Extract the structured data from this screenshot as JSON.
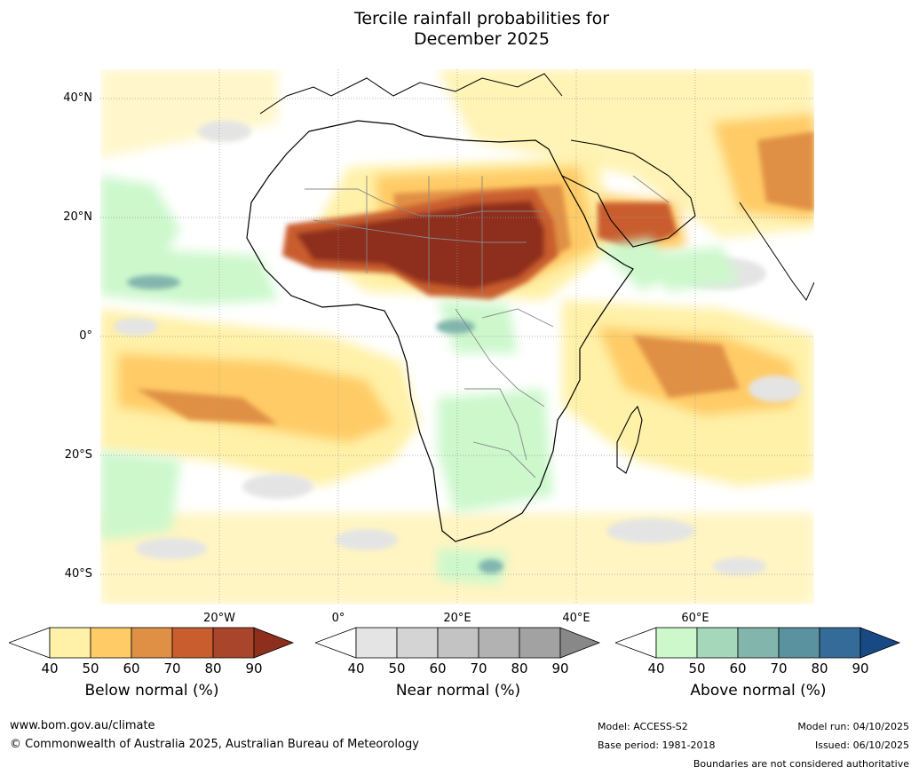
{
  "title_line1": "Tercile rainfall probabilities for",
  "title_line2": "December 2025",
  "lat_labels": [
    "40°N",
    "20°N",
    "0°",
    "20°S",
    "40°S"
  ],
  "lon_labels": [
    "20°W",
    "0°",
    "20°E",
    "40°E",
    "60°E"
  ],
  "legends": [
    {
      "title": "Below normal (%)",
      "ticks": [
        "40",
        "50",
        "60",
        "70",
        "80",
        "90"
      ],
      "colors": [
        "#fff1a8",
        "#ffcb66",
        "#e09045",
        "#c95d2e",
        "#a8452a",
        "#8e2f1d"
      ]
    },
    {
      "title": "Near normal (%)",
      "ticks": [
        "40",
        "50",
        "60",
        "70",
        "80",
        "90"
      ],
      "colors": [
        "#e4e4e4",
        "#d4d4d4",
        "#c3c3c3",
        "#b2b2b2",
        "#a2a2a2",
        "#888888"
      ]
    },
    {
      "title": "Above normal (%)",
      "ticks": [
        "40",
        "50",
        "60",
        "70",
        "80",
        "90"
      ],
      "colors": [
        "#ccf8cc",
        "#a5d7bb",
        "#82b6ad",
        "#5b92a0",
        "#356b98",
        "#174a85"
      ]
    }
  ],
  "footer": {
    "url": "www.bom.gov.au/climate",
    "copyright": "© Commonwealth of Australia 2025, Australian Bureau of Meteorology",
    "model": "Model: ACCESS-S2",
    "base_period": "Base period: 1981-2018",
    "model_run": "Model run: 04/10/2025",
    "issued": "Issued: 06/10/2025",
    "disclaimer": "Boundaries are not considered authoritative"
  }
}
